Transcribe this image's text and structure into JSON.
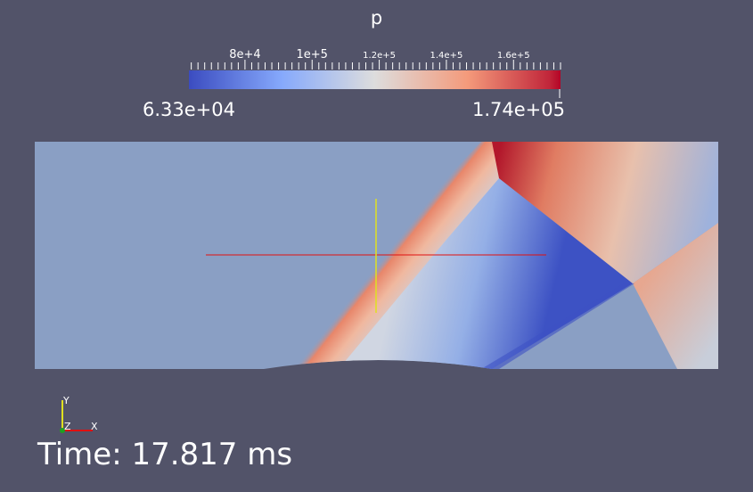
{
  "window": {
    "background": "#525369"
  },
  "scalar_bar": {
    "title": "p",
    "min_label": "6.33e+04",
    "max_label": "1.74e+05",
    "range": [
      63300,
      174000
    ],
    "tick_labels": [
      "8e+4",
      "1e+5",
      "1.2e+5",
      "1.4e+5",
      "1.6e+5"
    ],
    "tick_values": [
      80000,
      100000,
      120000,
      140000,
      160000
    ],
    "colormap": "cool-to-warm",
    "colors": [
      "#3b4cc0",
      "#86a9fc",
      "#dddddd",
      "#f49a7b",
      "#b40426"
    ]
  },
  "render_view": {
    "field": "p",
    "domain_fill": "#8a9fc4",
    "geometry": "domain with circular-arc bump on lower wall",
    "crosshair_colors": {
      "horizontal": "#e01010",
      "vertical": "#e0e020"
    }
  },
  "orientation_axes": {
    "y_label": "Y",
    "z_label": "Z",
    "x_label": "X"
  },
  "annotation": {
    "time_text": "Time: 17.817 ms"
  }
}
